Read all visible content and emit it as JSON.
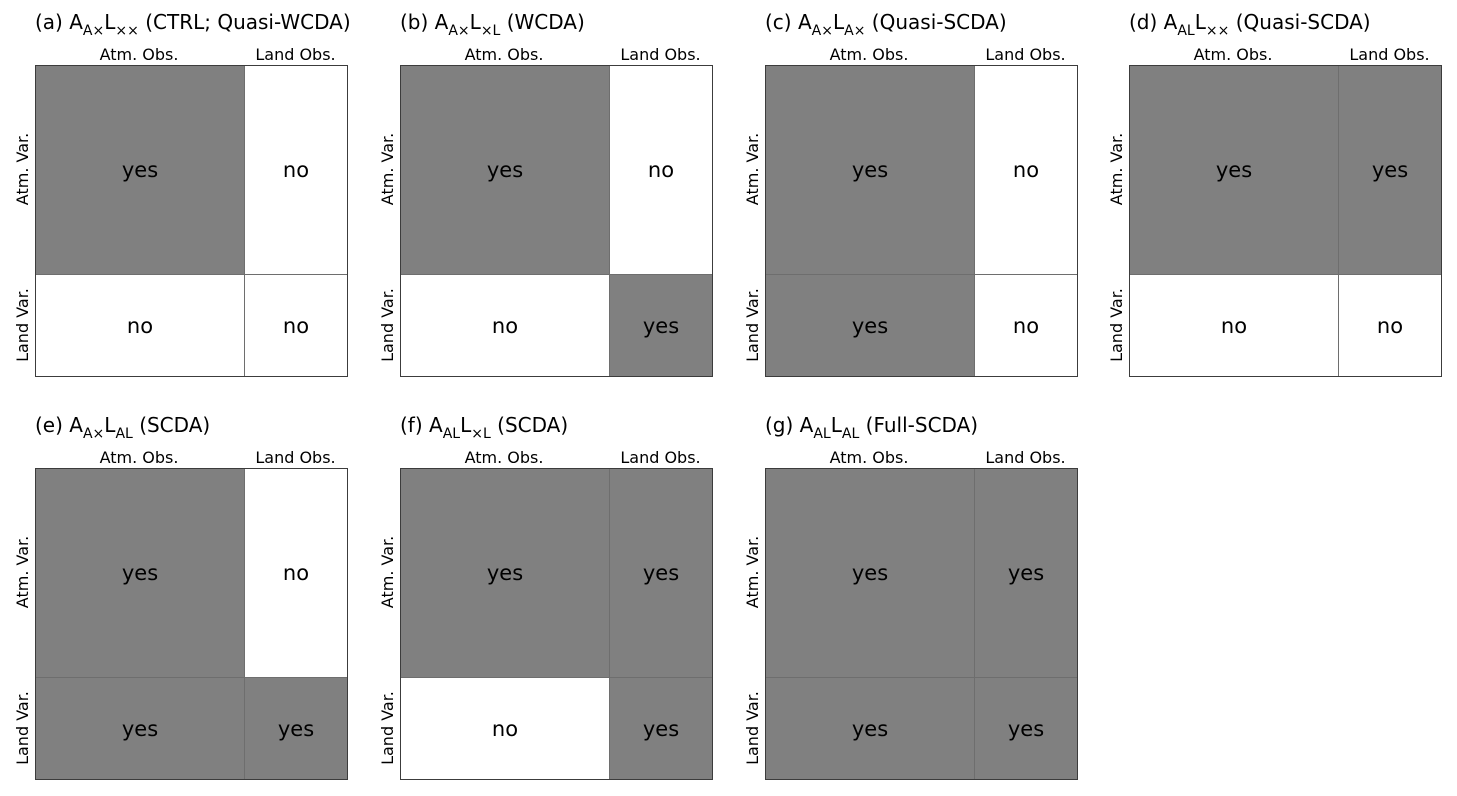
{
  "labels": {
    "atm_obs": "Atm. Obs.",
    "land_obs": "Land Obs.",
    "atm_var": "Atm. Var.",
    "land_var": "Land Var."
  },
  "panels": [
    {
      "letter": "(a)",
      "a_sub": "A×",
      "l_sub": "××",
      "desc": "(CTRL; Quasi-WCDA)",
      "cells": [
        [
          "yes",
          "no"
        ],
        [
          "no",
          "no"
        ]
      ]
    },
    {
      "letter": "(b)",
      "a_sub": "A×",
      "l_sub": "×L",
      "desc": "(WCDA)",
      "cells": [
        [
          "yes",
          "no"
        ],
        [
          "no",
          "yes"
        ]
      ]
    },
    {
      "letter": "(c)",
      "a_sub": "A×",
      "l_sub": "A×",
      "desc": "(Quasi-SCDA)",
      "cells": [
        [
          "yes",
          "no"
        ],
        [
          "yes",
          "no"
        ]
      ]
    },
    {
      "letter": "(d)",
      "a_sub": "AL",
      "l_sub": "××",
      "desc": "(Quasi-SCDA)",
      "cells": [
        [
          "yes",
          "yes"
        ],
        [
          "no",
          "no"
        ]
      ]
    },
    {
      "letter": "(e)",
      "a_sub": "A×",
      "l_sub": "AL",
      "desc": "(SCDA)",
      "cells": [
        [
          "yes",
          "no"
        ],
        [
          "yes",
          "yes"
        ]
      ]
    },
    {
      "letter": "(f)",
      "a_sub": "AL",
      "l_sub": "×L",
      "desc": "(SCDA)",
      "cells": [
        [
          "yes",
          "yes"
        ],
        [
          "no",
          "yes"
        ]
      ]
    },
    {
      "letter": "(g)",
      "a_sub": "AL",
      "l_sub": "AL",
      "desc": "(Full-SCDA)",
      "cells": [
        [
          "yes",
          "yes"
        ],
        [
          "yes",
          "yes"
        ]
      ]
    }
  ]
}
